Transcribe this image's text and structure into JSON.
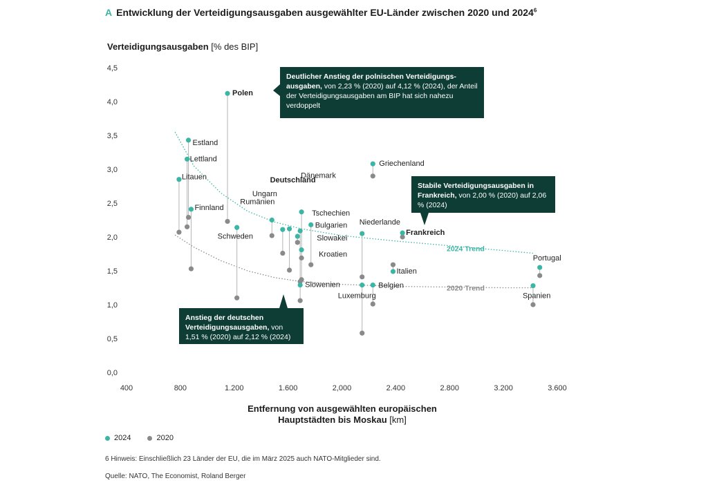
{
  "header": {
    "letter": "A",
    "title": "Entwicklung der Verteidigungsausgaben ausgewählter EU-Länder zwischen 2020 und 2024",
    "footnote_mark": "6"
  },
  "colors": {
    "c2024": "#3cb5a4",
    "c2020": "#8a8a8a",
    "callout_bg": "#0e3d35"
  },
  "chart_data": {
    "type": "scatter",
    "title": "Entwicklung der Verteidigungsausgaben ausgewählter EU-Länder zwischen 2020 und 2024",
    "ylabel_bold": "Verteidigungsausgaben",
    "ylabel_unit": "[% des BIP]",
    "xlabel_line1": "Entfernung von ausgewählten europäischen",
    "xlabel_line2_bold": "Hauptstädten bis Moskau",
    "xlabel_line2_unit": "[km]",
    "xlim": [
      400,
      3600
    ],
    "ylim": [
      0,
      4.5
    ],
    "xticks": [
      400,
      800,
      1200,
      1600,
      2000,
      2400,
      2800,
      3200,
      3600
    ],
    "xtick_labels": [
      "400",
      "800",
      "1.200",
      "1.600",
      "2,000",
      "2.400",
      "2.800",
      "3.200",
      "3.600"
    ],
    "yticks": [
      0,
      0.5,
      1.0,
      1.5,
      2.0,
      2.5,
      3.0,
      3.5,
      4.0,
      4.5
    ],
    "ytick_labels": [
      "0,0",
      "0,5",
      "1,0",
      "1,5",
      "2,0",
      "2,5",
      "3,0",
      "3,5",
      "4,0",
      "4,5"
    ],
    "legend": [
      {
        "name": "2024"
      },
      {
        "name": "2020"
      }
    ],
    "series": [
      {
        "name": "Polen",
        "label": "Polen",
        "bold": true,
        "x": 1150,
        "v2024": 4.12,
        "v2020": 2.23
      },
      {
        "name": "Estland",
        "label": "Estland",
        "bold": false,
        "x": 860,
        "v2024": 3.43,
        "v2020": 2.29
      },
      {
        "name": "Lettland",
        "label": "Lettland",
        "bold": false,
        "x": 850,
        "v2024": 3.15,
        "v2020": 2.15
      },
      {
        "name": "Litauen",
        "label": "Litauen",
        "bold": false,
        "x": 790,
        "v2024": 2.85,
        "v2020": 2.07
      },
      {
        "name": "Finnland",
        "label": "Finnland",
        "bold": false,
        "x": 880,
        "v2024": 2.41,
        "v2020": 1.53
      },
      {
        "name": "Schweden",
        "label": "Schweden",
        "bold": false,
        "x": 1220,
        "v2024": 2.14,
        "v2020": 1.1
      },
      {
        "name": "Rumänien",
        "label": "Rumänien",
        "bold": false,
        "x": 1480,
        "v2024": 2.25,
        "v2020": 2.02
      },
      {
        "name": "Ungarn",
        "label": "Ungarn",
        "bold": false,
        "x": 1560,
        "v2024": 2.11,
        "v2020": 1.76
      },
      {
        "name": "Deutschland",
        "label": "Deutschland",
        "bold": true,
        "x": 1610,
        "v2024": 2.12,
        "v2020": 1.51
      },
      {
        "name": "Dänemark",
        "label": "Dänemark",
        "bold": false,
        "x": 1700,
        "v2024": 2.37,
        "v2020": 1.37
      },
      {
        "name": "Tschechien",
        "label": "Tschechien",
        "bold": false,
        "x": 1690,
        "v2024": 2.09,
        "v2020": 1.34
      },
      {
        "name": "Bulgarien",
        "label": "Bulgarien",
        "bold": false,
        "x": 1770,
        "v2024": 2.18,
        "v2020": 1.59
      },
      {
        "name": "Slowakei",
        "label": "Slowakei",
        "bold": false,
        "x": 1670,
        "v2024": 2.01,
        "v2020": 1.92
      },
      {
        "name": "Kroatien",
        "label": "Kroatien",
        "bold": false,
        "x": 1700,
        "v2024": 1.81,
        "v2020": 1.69
      },
      {
        "name": "Slowenien",
        "label": "Slowenien",
        "bold": false,
        "x": 1690,
        "v2024": 1.29,
        "v2020": 1.06
      },
      {
        "name": "Griechenland",
        "label": "Griechenland",
        "bold": false,
        "x": 2230,
        "v2024": 3.08,
        "v2020": 2.9
      },
      {
        "name": "Niederlande",
        "label": "Niederlande",
        "bold": false,
        "x": 2150,
        "v2024": 2.05,
        "v2020": 1.41
      },
      {
        "name": "Frankreich",
        "label": "Frankreich",
        "bold": true,
        "x": 2450,
        "v2024": 2.06,
        "v2020": 2.0
      },
      {
        "name": "Italien",
        "label": "Italien",
        "bold": false,
        "x": 2380,
        "v2024": 1.49,
        "v2020": 1.59
      },
      {
        "name": "Belgien",
        "label": "Belgien",
        "bold": false,
        "x": 2230,
        "v2024": 1.29,
        "v2020": 1.01
      },
      {
        "name": "Luxemburg",
        "label": "Luxemburg",
        "bold": false,
        "x": 2150,
        "v2024": 1.29,
        "v2020": 0.58
      },
      {
        "name": "Portugal",
        "label": "Portugal",
        "bold": false,
        "x": 3470,
        "v2024": 1.55,
        "v2020": 1.43
      },
      {
        "name": "Spanien",
        "label": "Spanien",
        "bold": false,
        "x": 3420,
        "v2024": 1.28,
        "v2020": 1.0
      }
    ],
    "trends": [
      {
        "name": "2024 Trend",
        "label": "2024 Trend",
        "points": [
          [
            760,
            3.55
          ],
          [
            900,
            3.05
          ],
          [
            1100,
            2.65
          ],
          [
            1300,
            2.38
          ],
          [
            1500,
            2.22
          ],
          [
            1700,
            2.12
          ],
          [
            2000,
            2.02
          ],
          [
            2400,
            1.94
          ],
          [
            2800,
            1.87
          ],
          [
            3200,
            1.8
          ],
          [
            3420,
            1.76
          ]
        ]
      },
      {
        "name": "2020 Trend",
        "label": "2020 Trend",
        "points": [
          [
            760,
            2.03
          ],
          [
            900,
            1.85
          ],
          [
            1100,
            1.65
          ],
          [
            1300,
            1.5
          ],
          [
            1500,
            1.4
          ],
          [
            1700,
            1.34
          ],
          [
            2000,
            1.3
          ],
          [
            2400,
            1.27
          ],
          [
            2800,
            1.26
          ],
          [
            3200,
            1.25
          ],
          [
            3420,
            1.25
          ]
        ]
      }
    ],
    "callouts": {
      "poland": {
        "bold": "Deutlicher Anstieg der polnischen Verteidigungs-ausgaben,",
        "text": " von 2,23 % (2020) auf 4,12 % (2024), der Anteil der Verteidigungsausgaben am BIP hat sich nahezu verdoppelt"
      },
      "france": {
        "bold": "Stabile Verteidigungsausgaben in Frankreich,",
        "text": " von 2,00 % (2020) auf 2,06 % (2024)"
      },
      "germany": {
        "bold": "Anstieg der deutschen Verteidigungsausgaben,",
        "text": " von 1,51 % (2020) auf 2,12 % (2024)"
      }
    }
  },
  "notes": {
    "footnote": "6  Hinweis: Einschließlich 23 Länder der EU, die im März 2025 auch NATO-Mitglieder sind.",
    "source": "Quelle: NATO, The Economist, Roland Berger"
  }
}
